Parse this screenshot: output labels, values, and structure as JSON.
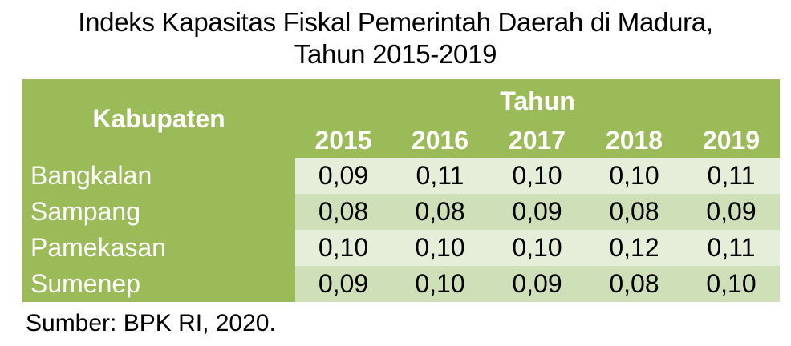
{
  "chart_data": {
    "type": "table",
    "title_line1": "Indeks Kapasitas Fiskal Pemerintah Daerah di Madura,",
    "title_line2": "Tahun 2015-2019",
    "row_header": "Kabupaten",
    "column_group_header": "Tahun",
    "columns": [
      "2015",
      "2016",
      "2017",
      "2018",
      "2019"
    ],
    "rows": [
      {
        "label": "Bangkalan",
        "values": [
          "0,09",
          "0,11",
          "0,10",
          "0,10",
          "0,11"
        ]
      },
      {
        "label": "Sampang",
        "values": [
          "0,08",
          "0,08",
          "0,09",
          "0,08",
          "0,09"
        ]
      },
      {
        "label": "Pamekasan",
        "values": [
          "0,10",
          "0,10",
          "0,10",
          "0,12",
          "0,11"
        ]
      },
      {
        "label": "Sumenep",
        "values": [
          "0,09",
          "0,10",
          "0,09",
          "0,08",
          "0,10"
        ]
      }
    ],
    "source": "Sumber: BPK RI, 2020.",
    "colors": {
      "header": "#9bbb59",
      "row_light": "#e5eed9",
      "row_dark": "#cfdfb8"
    }
  }
}
